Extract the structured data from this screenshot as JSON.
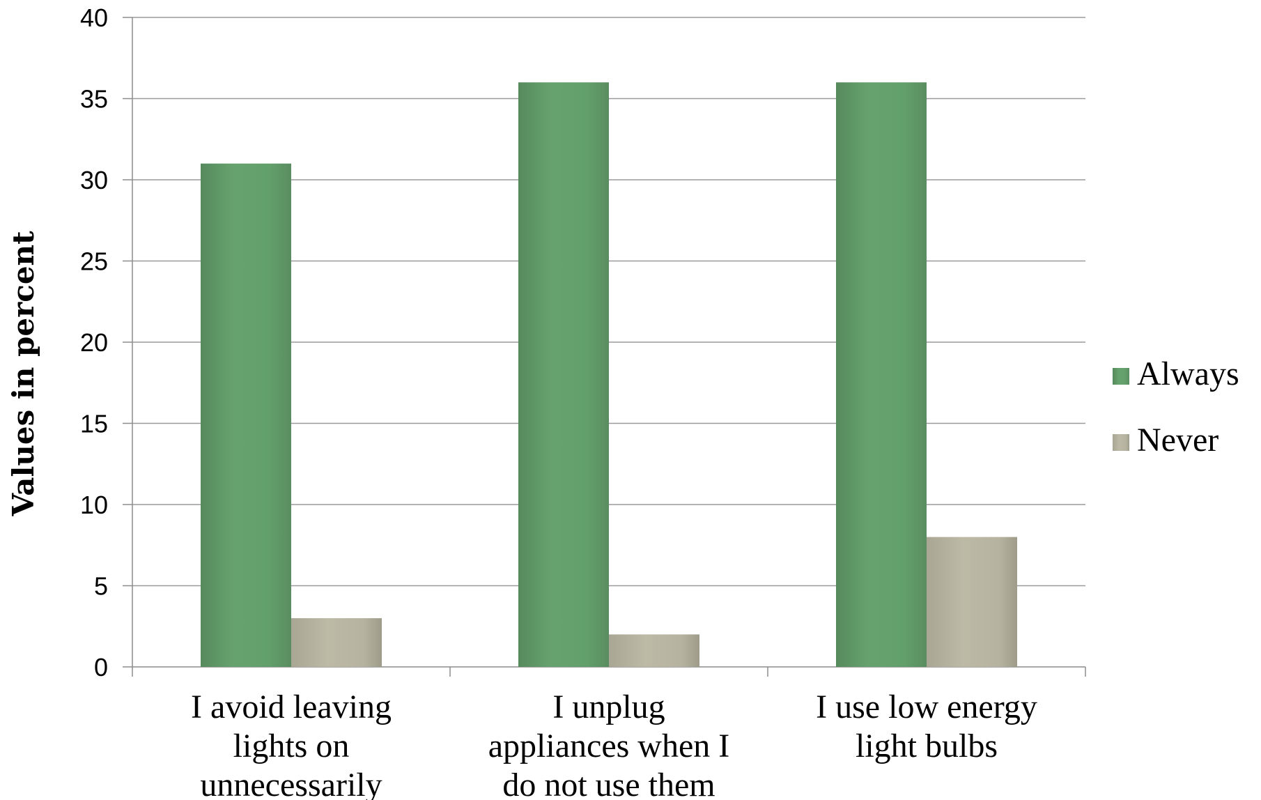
{
  "chart_data": {
    "type": "bar",
    "title": "",
    "xlabel": "",
    "ylabel": "Values in percent",
    "ylim": [
      0,
      40
    ],
    "yticks": [
      0,
      5,
      10,
      15,
      20,
      25,
      30,
      35,
      40
    ],
    "grid": true,
    "legend_position": "right",
    "categories": [
      [
        "I avoid leaving",
        "lights on",
        "unnecessarily"
      ],
      [
        "I unplug",
        "appliances when I",
        "do not use them"
      ],
      [
        "I use low energy",
        "light bulbs"
      ]
    ],
    "series": [
      {
        "name": "Always",
        "color": "#5e9a66",
        "values": [
          31,
          36,
          36
        ]
      },
      {
        "name": "Never",
        "color": "#b3b09c",
        "values": [
          3,
          2,
          8
        ]
      }
    ]
  }
}
